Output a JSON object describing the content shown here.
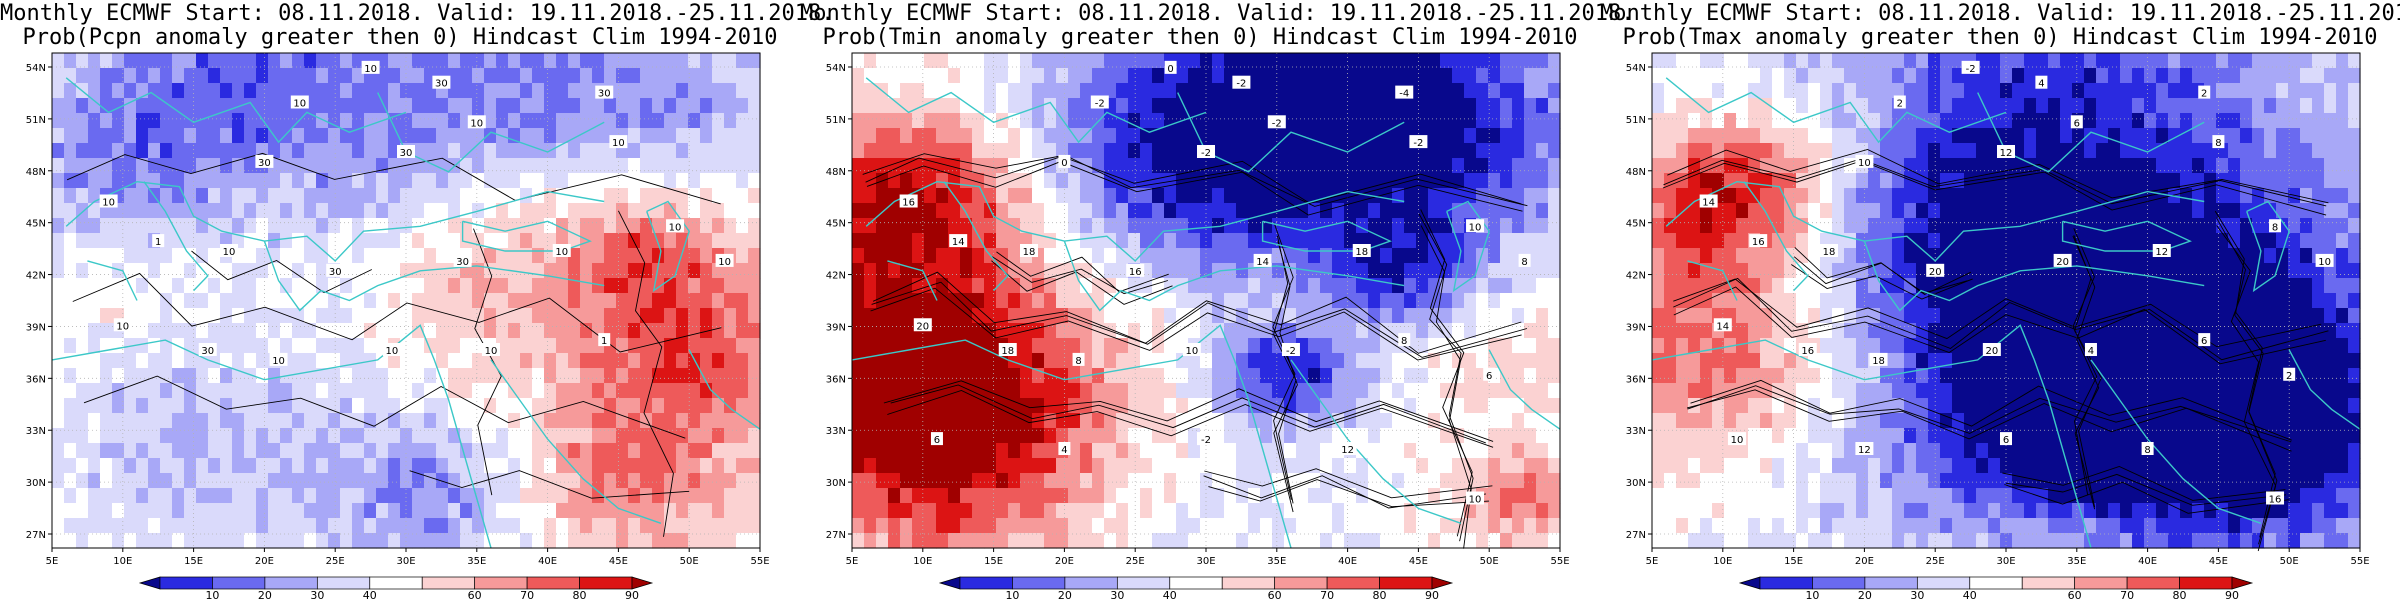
{
  "panels": [
    {
      "title_line1": "Monthly ECMWF Start: 08.11.2018. Valid: 19.11.2018.-25.11.2018.",
      "title_line2": "Prob(Pcpn anomaly greater then 0) Hindcast Clim 1994-2010",
      "contour_labels": [
        "10",
        "10",
        "30",
        "30",
        "10",
        "10",
        "30",
        "30",
        "10",
        "1",
        "10",
        "30",
        "30",
        "10",
        "10",
        "10",
        "10",
        "30",
        "10",
        "10",
        "10",
        "1"
      ]
    },
    {
      "title_line1": "Monthly ECMWF Start: 08.11.2018. Valid: 19.11.2018.-25.11.2018.",
      "title_line2": "Prob(Tmin anomaly greater then 0) Hindcast Clim 1994-2010",
      "contour_labels": [
        "0",
        "-2",
        "-2",
        "-4",
        "-2",
        "-2",
        "0",
        "-2",
        "16",
        "14",
        "18",
        "16",
        "14",
        "18",
        "10",
        "8",
        "20",
        "18",
        "8",
        "10",
        "-2",
        "8",
        "6",
        "6",
        "4",
        "-2",
        "12",
        "10"
      ]
    },
    {
      "title_line1": "Monthly ECMWF Start: 08.11.2018. Valid: 19.11.2018.-25.11.2018.",
      "title_line2": "Prob(Tmax anomaly greater then 0) Hindcast Clim 1994-2010",
      "contour_labels": [
        "-2",
        "2",
        "4",
        "2",
        "6",
        "8",
        "10",
        "12",
        "14",
        "16",
        "18",
        "20",
        "20",
        "12",
        "8",
        "10",
        "14",
        "16",
        "18",
        "20",
        "4",
        "6",
        "2",
        "10",
        "12",
        "6",
        "8",
        "16"
      ]
    }
  ],
  "map": {
    "lat_labels": [
      "54N",
      "51N",
      "48N",
      "45N",
      "42N",
      "39N",
      "36N",
      "33N",
      "30N",
      "27N"
    ],
    "lon_labels": [
      "5E",
      "10E",
      "15E",
      "20E",
      "25E",
      "30E",
      "35E",
      "40E",
      "45E",
      "50E",
      "55E"
    ]
  },
  "colorbar": {
    "labels": [
      "10",
      "20",
      "30",
      "40",
      "60",
      "70",
      "80",
      "90"
    ],
    "colors": [
      "#08088c",
      "#2a2ae0",
      "#6a6af0",
      "#a8a8f7",
      "#dadafb",
      "#ffffff",
      "#fbd2d2",
      "#f69a9a",
      "#ee5a5a",
      "#dc1414",
      "#a00000"
    ]
  },
  "colors": {
    "coast": "#3cc8c8",
    "contour": "#000000",
    "grid": "#b4b4b4"
  }
}
